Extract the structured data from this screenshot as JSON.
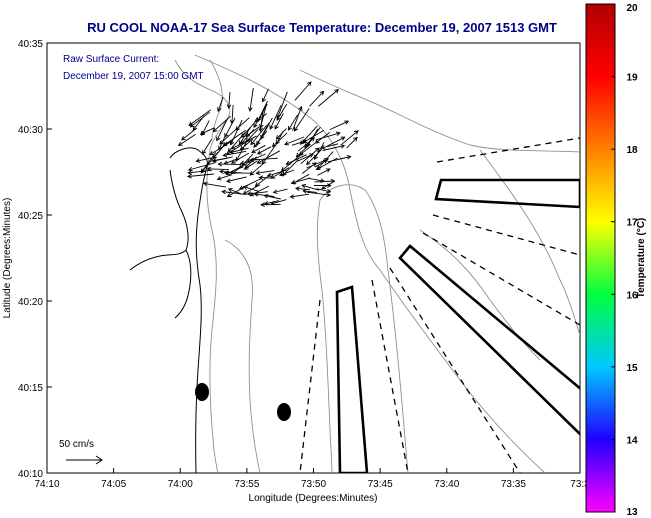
{
  "title": "RU COOL  NOAA-17  Sea Surface Temperature:  December 19, 2007 1513 GMT",
  "current_label": {
    "line1": "Raw Surface Current:",
    "line2": "December 19, 2007 15:00 GMT"
  },
  "axes": {
    "xlabel": "Longitude (Degrees:Minutes)",
    "ylabel": "Latitude (Degrees:Minutes)",
    "xticks": [
      "74:10",
      "74:05",
      "74:00",
      "73:55",
      "73:50",
      "73:45",
      "73:40",
      "73:35",
      "73:3"
    ],
    "yticks": [
      "40:35",
      "40:30",
      "40:25",
      "40:20",
      "40:15",
      "40:10"
    ]
  },
  "scale_label": "50 cm/s",
  "colorbar": {
    "label": "Temperature (°C)",
    "ticks": [
      "20",
      "19",
      "18",
      "17",
      "16",
      "15",
      "14",
      "13"
    ],
    "min": 13,
    "max": 20,
    "colors": [
      "#ff00ff",
      "#2000ff",
      "#00c8ff",
      "#00ff40",
      "#ffff00",
      "#ff8000",
      "#ff0000",
      "#b00000"
    ]
  },
  "colors": {
    "title": "#00008b",
    "annotation": "#00008b",
    "land": "#ffffff",
    "coast": "#000000",
    "bathymetry": "#909090"
  }
}
